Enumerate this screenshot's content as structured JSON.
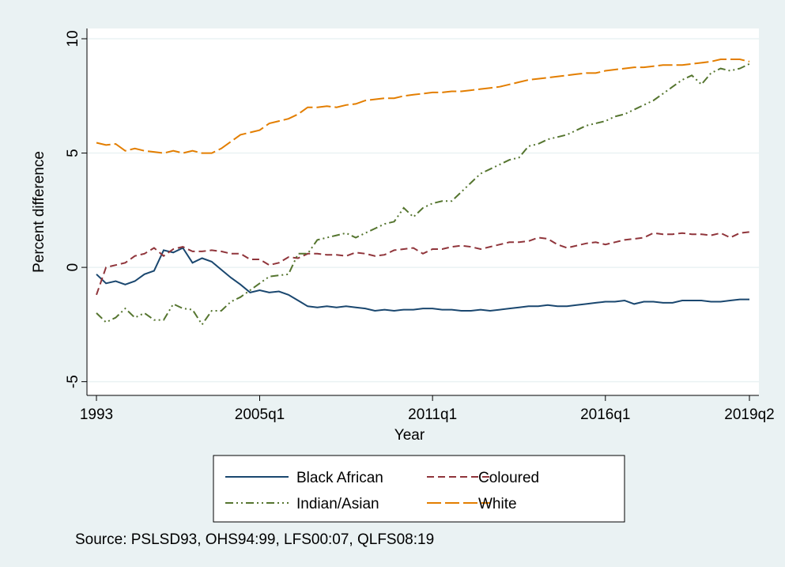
{
  "chart_data": {
    "type": "line",
    "x_label": "Year",
    "y_label": "Percent difference",
    "note": "Source: PSLSD93, OHS94:99, LFS00:07, QLFS08:19",
    "categories": [
      "1993",
      null,
      null,
      null,
      null,
      null,
      null,
      null,
      null,
      null,
      null,
      null,
      null,
      null,
      null,
      null,
      null,
      "2005q1",
      null,
      null,
      null,
      null,
      null,
      null,
      null,
      null,
      null,
      null,
      null,
      null,
      null,
      null,
      null,
      null,
      null,
      "2011q1",
      null,
      null,
      null,
      null,
      null,
      null,
      null,
      null,
      null,
      null,
      null,
      null,
      null,
      null,
      null,
      null,
      null,
      "2016q1",
      null,
      null,
      null,
      null,
      null,
      null,
      null,
      null,
      null,
      null,
      null,
      null,
      null,
      null,
      "2019q2"
    ],
    "ylim": [
      -5.6,
      10.45
    ],
    "yticks": [
      -5,
      0,
      5,
      10
    ],
    "grid": true,
    "legend": "bottom",
    "series": [
      {
        "name": "Black African",
        "color": "#1a476f",
        "dash": "solid",
        "values": [
          -0.3,
          -0.7,
          -0.6,
          -0.75,
          -0.6,
          -0.3,
          -0.15,
          0.75,
          0.65,
          0.85,
          0.2,
          0.4,
          0.25,
          -0.1,
          -0.45,
          -0.75,
          -1.1,
          -1.0,
          -1.1,
          -1.05,
          -1.2,
          -1.45,
          -1.7,
          -1.75,
          -1.7,
          -1.75,
          -1.7,
          -1.75,
          -1.8,
          -1.9,
          -1.85,
          -1.9,
          -1.85,
          -1.85,
          -1.8,
          -1.8,
          -1.85,
          -1.85,
          -1.9,
          -1.9,
          -1.85,
          -1.9,
          -1.85,
          -1.8,
          -1.75,
          -1.7,
          -1.7,
          -1.65,
          -1.7,
          -1.7,
          -1.65,
          -1.6,
          -1.55,
          -1.5,
          -1.5,
          -1.45,
          -1.6,
          -1.5,
          -1.5,
          -1.55,
          -1.55,
          -1.45,
          -1.45,
          -1.45,
          -1.5,
          -1.5,
          -1.45,
          -1.4,
          -1.4
        ]
      },
      {
        "name": "Coloured",
        "color": "#90353b",
        "dash": "dash",
        "values": [
          -1.2,
          0.0,
          0.1,
          0.2,
          0.5,
          0.6,
          0.85,
          0.5,
          0.8,
          0.9,
          0.7,
          0.7,
          0.75,
          0.7,
          0.6,
          0.6,
          0.35,
          0.35,
          0.1,
          0.2,
          0.45,
          0.4,
          0.6,
          0.6,
          0.55,
          0.55,
          0.5,
          0.65,
          0.6,
          0.5,
          0.55,
          0.75,
          0.8,
          0.85,
          0.6,
          0.8,
          0.8,
          0.9,
          0.95,
          0.9,
          0.8,
          0.9,
          1.0,
          1.1,
          1.1,
          1.15,
          1.3,
          1.25,
          1.0,
          0.85,
          0.95,
          1.05,
          1.1,
          1.0,
          1.1,
          1.2,
          1.25,
          1.3,
          1.5,
          1.45,
          1.45,
          1.5,
          1.45,
          1.45,
          1.4,
          1.5,
          1.3,
          1.5,
          1.55
        ]
      },
      {
        "name": "Indian/Asian",
        "color": "#55752f",
        "dash": "dashdot",
        "values": [
          -2.0,
          -2.4,
          -2.2,
          -1.8,
          -2.2,
          -2.0,
          -2.3,
          -2.3,
          -1.6,
          -1.8,
          -1.85,
          -2.5,
          -1.9,
          -1.9,
          -1.5,
          -1.3,
          -1.0,
          -0.7,
          -0.4,
          -0.35,
          -0.3,
          0.6,
          0.6,
          1.2,
          1.3,
          1.4,
          1.5,
          1.3,
          1.5,
          1.7,
          1.9,
          2.0,
          2.6,
          2.2,
          2.6,
          2.8,
          2.9,
          2.9,
          3.3,
          3.7,
          4.1,
          4.3,
          4.5,
          4.7,
          4.8,
          5.3,
          5.4,
          5.6,
          5.7,
          5.8,
          6.0,
          6.2,
          6.3,
          6.4,
          6.6,
          6.7,
          6.9,
          7.1,
          7.3,
          7.6,
          7.9,
          8.2,
          8.4,
          8.0,
          8.5,
          8.7,
          8.6,
          8.7,
          8.9
        ]
      },
      {
        "name": "White",
        "color": "#e37e00",
        "dash": "longdash",
        "values": [
          5.45,
          5.35,
          5.4,
          5.1,
          5.2,
          5.1,
          5.05,
          5.0,
          5.1,
          5.0,
          5.1,
          5.0,
          5.0,
          5.2,
          5.5,
          5.8,
          5.9,
          6.0,
          6.3,
          6.4,
          6.5,
          6.7,
          7.0,
          7.0,
          7.05,
          7.0,
          7.1,
          7.15,
          7.3,
          7.35,
          7.4,
          7.4,
          7.5,
          7.55,
          7.6,
          7.65,
          7.65,
          7.7,
          7.7,
          7.75,
          7.8,
          7.85,
          7.9,
          8.0,
          8.1,
          8.2,
          8.25,
          8.3,
          8.35,
          8.4,
          8.45,
          8.5,
          8.5,
          8.6,
          8.65,
          8.7,
          8.75,
          8.75,
          8.8,
          8.85,
          8.85,
          8.85,
          8.9,
          8.95,
          9.0,
          9.1,
          9.1,
          9.1,
          9.0
        ]
      }
    ]
  }
}
